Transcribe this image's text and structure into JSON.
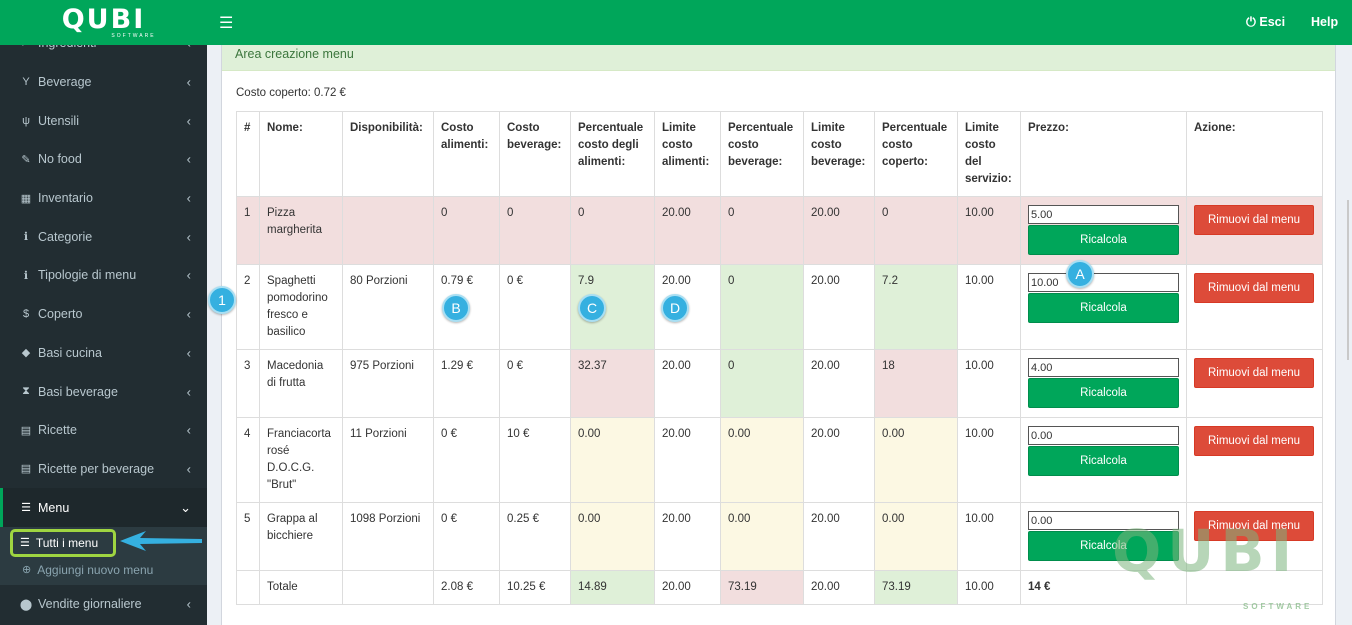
{
  "brand": {
    "logo_text": "QUBI",
    "logo_sub": "SOFTWARE"
  },
  "topbar": {
    "menu_icon": "bars-icon",
    "logout_label": "Esci",
    "logout_icon": "power-icon",
    "help_label": "Help"
  },
  "sidebar": {
    "items": [
      {
        "label": "Ingredienti",
        "icon": "cutlery-icon",
        "glyph": "✂"
      },
      {
        "label": "Beverage",
        "icon": "glass-icon",
        "glyph": "Y"
      },
      {
        "label": "Utensili",
        "icon": "fork-icon",
        "glyph": "ψ"
      },
      {
        "label": "No food",
        "icon": "wrench-icon",
        "glyph": "✎"
      },
      {
        "label": "Inventario",
        "icon": "table-icon",
        "glyph": "▦"
      },
      {
        "label": "Categorie",
        "icon": "info-icon",
        "glyph": "ℹ"
      },
      {
        "label": "Tipologie di menu",
        "icon": "info-icon",
        "glyph": "ℹ"
      },
      {
        "label": "Coperto",
        "icon": "dollar-icon",
        "glyph": "$"
      },
      {
        "label": "Basi cucina",
        "icon": "cube-icon",
        "glyph": "◆"
      },
      {
        "label": "Basi beverage",
        "icon": "hourglass-icon",
        "glyph": "⧗"
      },
      {
        "label": "Ricette",
        "icon": "file-icon",
        "glyph": "▤"
      },
      {
        "label": "Ricette per beverage",
        "icon": "file-icon",
        "glyph": "▤"
      },
      {
        "label": "Menu",
        "icon": "list-icon",
        "glyph": "☰"
      }
    ],
    "submenu": [
      {
        "label": "Tutti i menu",
        "glyph": "☰"
      },
      {
        "label": "Aggiungi nuovo menu",
        "glyph": "⊕"
      }
    ],
    "after": {
      "label": "Vendite giornaliere",
      "glyph": "⬤"
    }
  },
  "panel": {
    "title": "Area creazione menu",
    "coperto_label": "Costo coperto: 0.72 €"
  },
  "table": {
    "headers": [
      "#",
      "Nome:",
      "Disponibilità:",
      "Costo alimenti:",
      "Costo beverage:",
      "Percentuale costo degli alimenti:",
      "Limite costo alimenti:",
      "Percentuale costo beverage:",
      "Limite costo beverage:",
      "Percentuale costo coperto:",
      "Limite costo del servizio:",
      "Prezzo:",
      "Azione:"
    ],
    "rows": [
      {
        "n": "1",
        "nome": "Pizza margherita",
        "disp": "",
        "costo_al": "0",
        "costo_bev": "0",
        "perc_al": "0",
        "lim_al": "20.00",
        "perc_bev": "0",
        "lim_bev": "20.00",
        "perc_cop": "0",
        "lim_serv": "10.00",
        "prezzo": "5.00"
      },
      {
        "n": "2",
        "nome": "Spaghetti pomodorino fresco e basilico",
        "disp": "80 Porzioni",
        "costo_al": "0.79 €",
        "costo_bev": "0 €",
        "perc_al": "7.9",
        "lim_al": "20.00",
        "perc_bev": "0",
        "lim_bev": "20.00",
        "perc_cop": "7.2",
        "lim_serv": "10.00",
        "prezzo": "10.00"
      },
      {
        "n": "3",
        "nome": "Macedonia di frutta",
        "disp": "975 Porzioni",
        "costo_al": "1.29 €",
        "costo_bev": "0 €",
        "perc_al": "32.37",
        "lim_al": "20.00",
        "perc_bev": "0",
        "lim_bev": "20.00",
        "perc_cop": "18",
        "lim_serv": "10.00",
        "prezzo": "4.00"
      },
      {
        "n": "4",
        "nome": "Franciacorta rosé D.O.C.G. \"Brut\"",
        "disp": "11 Porzioni",
        "costo_al": "0 €",
        "costo_bev": "10 €",
        "perc_al": "0.00",
        "lim_al": "20.00",
        "perc_bev": "0.00",
        "lim_bev": "20.00",
        "perc_cop": "0.00",
        "lim_serv": "10.00",
        "prezzo": "0.00"
      },
      {
        "n": "5",
        "nome": "Grappa al bicchiere",
        "disp": "1098 Porzioni",
        "costo_al": "0 €",
        "costo_bev": "0.25 €",
        "perc_al": "0.00",
        "lim_al": "20.00",
        "perc_bev": "0.00",
        "lim_bev": "20.00",
        "perc_cop": "0.00",
        "lim_serv": "10.00",
        "prezzo": "0.00"
      }
    ],
    "total": {
      "label": "Totale",
      "costo_al": "2.08 €",
      "costo_bev": "10.25 €",
      "perc_al": "14.89",
      "lim_al": "20.00",
      "perc_bev": "73.19",
      "lim_bev": "20.00",
      "perc_cop": "73.19",
      "lim_serv": "10.00",
      "prezzo": "14 €"
    },
    "recalc_label": "Ricalcola",
    "remove_label": "Rimuovi dal menu"
  },
  "callouts": {
    "one": "1",
    "a": "A",
    "b": "B",
    "c": "C",
    "d": "D"
  },
  "watermark": {
    "text": "QUBI",
    "sub": "SOFTWARE"
  },
  "colors": {
    "brand_green": "#00a65a",
    "sidebar_bg": "#222d32",
    "danger": "#dd4b39",
    "row_red": "#f2dede",
    "cell_green": "#dff0d8",
    "cell_yellow": "#fcf8e3",
    "callout": "#35b0e0",
    "highlight_box": "#9fd541"
  }
}
